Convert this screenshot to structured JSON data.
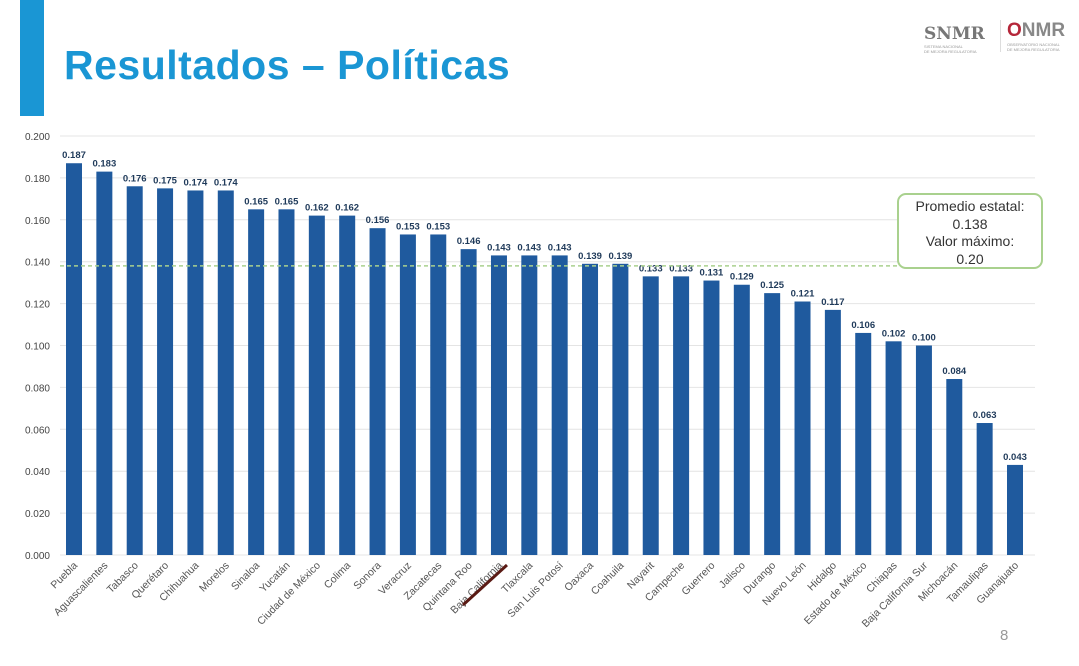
{
  "title": "Resultados – Políticas",
  "logos": {
    "snmr": "SNMR",
    "onmr": "ONMR"
  },
  "page_number": "8",
  "callout": {
    "line1": "Promedio estatal:",
    "line2": "0.138",
    "line3": "Valor máximo:",
    "line4": "0.20"
  },
  "colors": {
    "bar": "#1f5a9e",
    "accent": "#1a96d4",
    "average_line": "#a9d18e",
    "highlight_underline": "#5a1a14"
  },
  "chart_data": {
    "type": "bar",
    "categories": [
      "Puebla",
      "Aguascalientes",
      "Tabasco",
      "Querétaro",
      "Chihuahua",
      "Morelos",
      "Sinaloa",
      "Yucatán",
      "Ciudad de México",
      "Colima",
      "Sonora",
      "Veracruz",
      "Zacatecas",
      "Quintana Roo",
      "Baja California",
      "Tlaxcala",
      "San Luis Potosí",
      "Oaxaca",
      "Coahuila",
      "Nayarit",
      "Campeche",
      "Guerrero",
      "Jalisco",
      "Durango",
      "Nuevo León",
      "Hidalgo",
      "Estado de México",
      "Chiapas",
      "Baja California Sur",
      "Michoacán",
      "Tamaulipas",
      "Guanajuato"
    ],
    "values": [
      0.187,
      0.183,
      0.176,
      0.175,
      0.174,
      0.174,
      0.165,
      0.165,
      0.162,
      0.162,
      0.156,
      0.153,
      0.153,
      0.146,
      0.143,
      0.143,
      0.143,
      0.139,
      0.139,
      0.133,
      0.133,
      0.131,
      0.129,
      0.125,
      0.121,
      0.117,
      0.106,
      0.102,
      0.1,
      0.084,
      0.063,
      0.043
    ],
    "data_labels": [
      "0.187",
      "0.183",
      "0.176",
      "0.175",
      "0.174",
      "0.174",
      "0.165",
      "0.165",
      "0.162",
      "0.162",
      "0.156",
      "0.153",
      "0.153",
      "0.146",
      "0.143",
      "0.143",
      "0.143",
      "0.139",
      "0.139",
      "0.133",
      "0.133",
      "0.131",
      "0.129",
      "0.125",
      "0.121",
      "0.117",
      "0.106",
      "0.102",
      "0.100",
      "0.084",
      "0.063",
      "0.043"
    ],
    "ylim": [
      0,
      0.2
    ],
    "yticks": [
      "0.000",
      "0.020",
      "0.040",
      "0.060",
      "0.080",
      "0.100",
      "0.120",
      "0.140",
      "0.160",
      "0.180",
      "0.200"
    ],
    "reference_line": 0.138,
    "highlighted_category": "Baja California",
    "grid": true,
    "xlabel": "",
    "ylabel": "",
    "title": ""
  }
}
